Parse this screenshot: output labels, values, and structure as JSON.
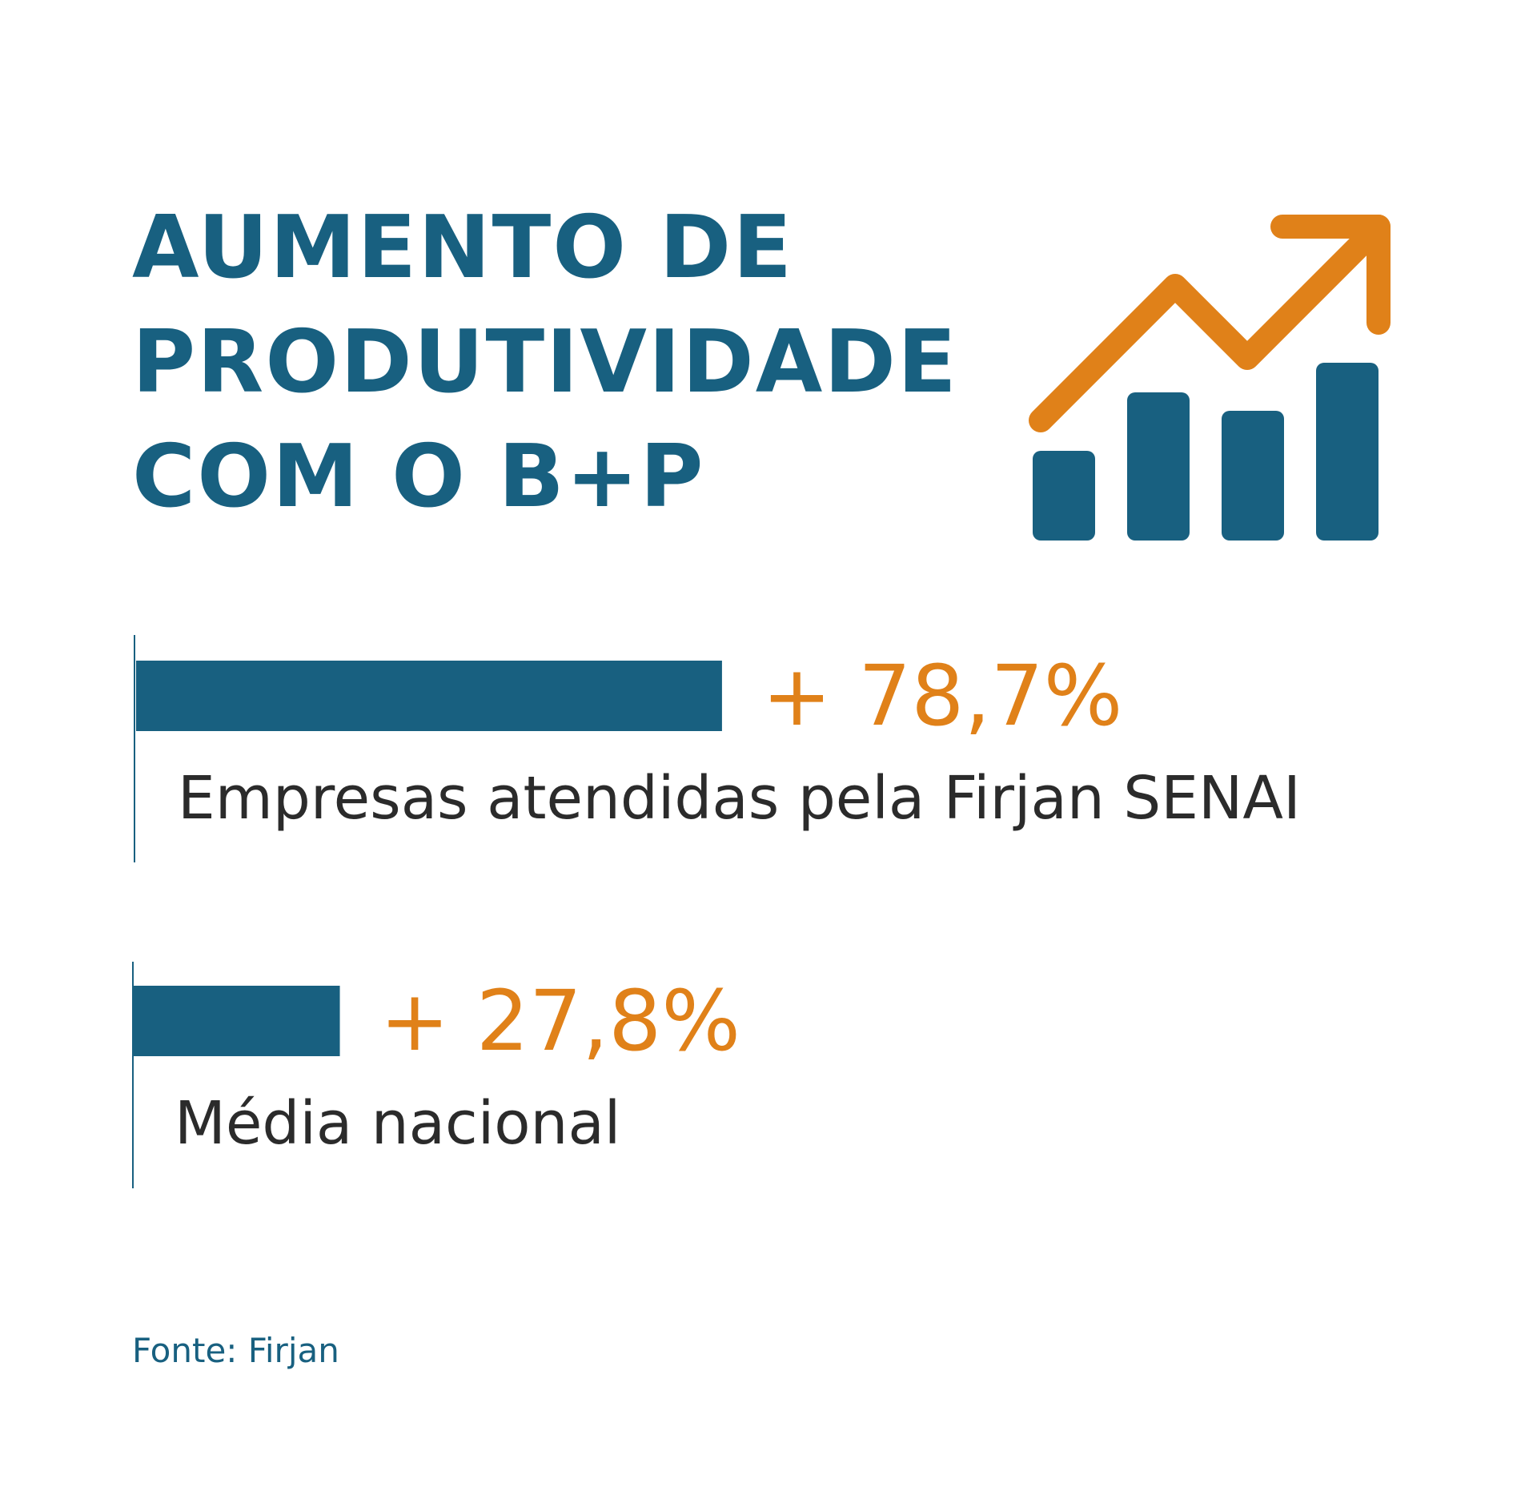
{
  "title_lines": [
    "AUMENTO DE",
    "PRODUTIVIDADE",
    "COM O B+P"
  ],
  "icon": "growth-chart-icon",
  "colors": {
    "primary": "#186080",
    "accent": "#e08119",
    "text": "#2b2b2b",
    "background": "#ffffff"
  },
  "chart_data": {
    "type": "bar",
    "orientation": "horizontal",
    "categories": [
      "Empresas atendidas pela Firjan SENAI",
      "Média nacional"
    ],
    "values": [
      78.7,
      27.8
    ],
    "value_labels": [
      "+ 78,7%",
      "+ 27,8%"
    ],
    "unit": "%",
    "xlim": [
      0,
      100
    ],
    "grid": false,
    "legend": "none"
  },
  "source": "Fonte: Firjan"
}
